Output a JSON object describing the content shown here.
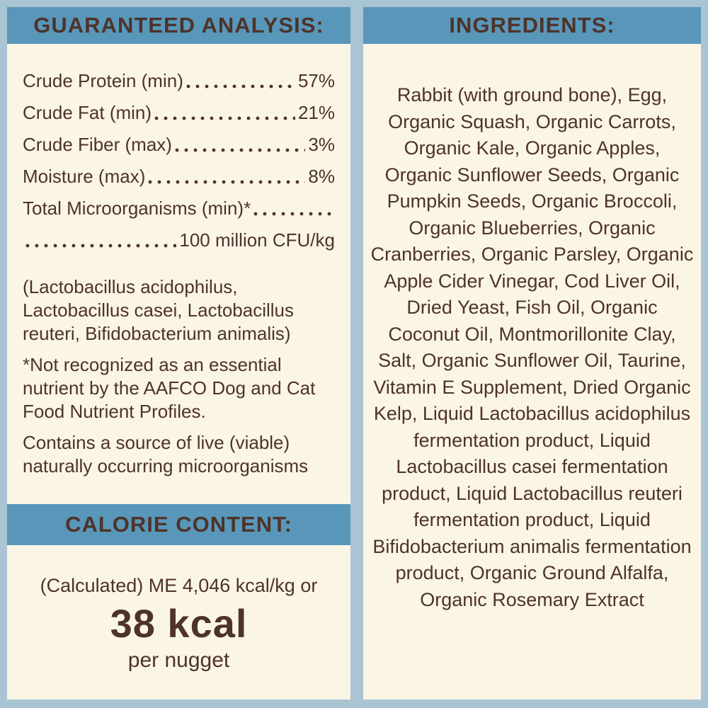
{
  "colors": {
    "frame": "#a9c5d3",
    "band": "#5897ba",
    "panel": "#fbf5e6",
    "text": "#4e332a"
  },
  "left_panel": {
    "header": "GUARANTEED ANALYSIS:",
    "rows": [
      {
        "label": "Crude Protein (min)",
        "value": "57%"
      },
      {
        "label": "Crude Fat (min)",
        "value": "21%"
      },
      {
        "label": "Crude Fiber (max)",
        "value": "3%"
      },
      {
        "label": "Moisture (max)",
        "value": "8%"
      }
    ],
    "micro_label": "Total Microorganisms (min)*",
    "micro_value": "100 million CFU/kg",
    "notes": [
      "(Lactobacillus acidophilus, Lactobacillus casei, Lactobacillus reuteri, Bifidobacterium animalis)",
      "*Not recognized as an essential nutrient by the AAFCO Dog and Cat Food Nutrient Profiles.",
      "Contains a source of live (viable) naturally occurring microorganisms"
    ]
  },
  "calorie": {
    "header": "CALORIE CONTENT:",
    "line1": "(Calculated) ME 4,046 kcal/kg or",
    "big": "38 kcal",
    "sub": "per nugget"
  },
  "right_panel": {
    "header": "INGREDIENTS:",
    "text": "Rabbit (with ground bone), Egg, Organic Squash, Organic Carrots, Organic Kale, Organic Apples, Organic Sunflower Seeds, Organic Pumpkin Seeds, Organic Broccoli, Organic Blueberries, Organic Cranberries, Organic Parsley, Organic Apple Cider Vinegar, Cod Liver Oil, Dried Yeast, Fish Oil, Organic Coconut Oil, Montmorillonite Clay, Salt, Organic Sunflower Oil, Taurine, Vitamin E Supplement, Dried Organic Kelp, Liquid Lactobacillus acidophilus fermentation product, Liquid Lactobacillus casei fermentation product, Liquid Lactobacillus reuteri fermentation product, Liquid Bifidobacterium animalis fermentation product, Organic Ground Alfalfa, Organic Rosemary Extract"
  }
}
